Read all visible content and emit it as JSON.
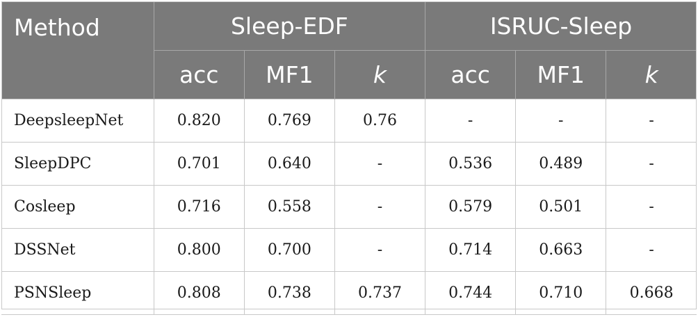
{
  "header": {
    "method": "Method",
    "groups": [
      "Sleep-EDF",
      "ISRUC-Sleep"
    ],
    "sub": [
      "acc",
      "MF1",
      "k",
      "acc",
      "MF1",
      "k"
    ]
  },
  "rows": [
    {
      "name": "DeepsleepNet",
      "values": [
        "0.820",
        "0.769",
        "0.76",
        "-",
        "-",
        "-"
      ]
    },
    {
      "name": "SleepDPC",
      "values": [
        "0.701",
        "0.640",
        "-",
        "0.536",
        "0.489",
        "-"
      ]
    },
    {
      "name": "Cosleep",
      "values": [
        "0.716",
        "0.558",
        "-",
        "0.579",
        "0.501",
        "-"
      ]
    },
    {
      "name": "DSSNet",
      "values": [
        "0.800",
        "0.700",
        "-",
        "0.714",
        "0.663",
        "-"
      ]
    },
    {
      "name": "PSNSleep",
      "values": [
        "0.808",
        "0.738",
        "0.737",
        "0.744",
        "0.710",
        "0.668"
      ]
    }
  ]
}
